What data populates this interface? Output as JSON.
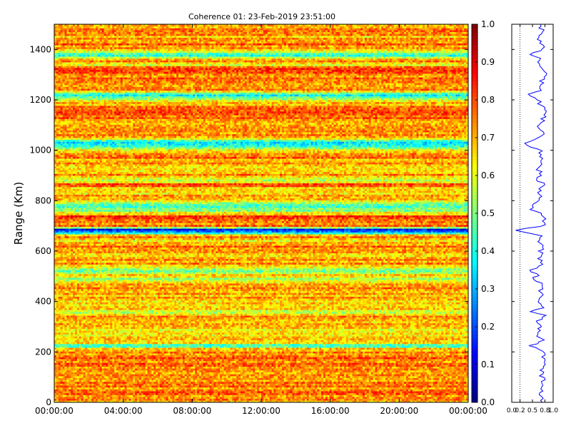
{
  "chart_data": [
    {
      "type": "heatmap",
      "title": "Coherence 01: 23-Feb-2019 23:51:00",
      "xlabel": "",
      "ylabel": "Range (Km)",
      "x_ticks": [
        "00:00:00",
        "04:00:00",
        "08:00:00",
        "12:00:00",
        "16:00:00",
        "20:00:00",
        "00:00:00"
      ],
      "y_ticks": [
        0,
        200,
        400,
        600,
        800,
        1000,
        1200,
        1400
      ],
      "xlim": [
        "00:00:00",
        "24:00:00"
      ],
      "ylim": [
        0,
        1500
      ],
      "colorbar": {
        "ticks": [
          0.0,
          0.1,
          0.2,
          0.3,
          0.4,
          0.5,
          0.6,
          0.7,
          0.8,
          0.9,
          1.0
        ],
        "range": [
          0.0,
          1.0
        ],
        "colormap": "jet"
      },
      "range_step_km": 7.5,
      "time_columns": 200,
      "range_profile": {
        "range_km": [
          0,
          100,
          170,
          200,
          215,
          225,
          235,
          250,
          260,
          275,
          290,
          300,
          320,
          345,
          360,
          375,
          400,
          425,
          450,
          475,
          490,
          505,
          520,
          535,
          550,
          570,
          600,
          620,
          640,
          660,
          685,
          700,
          720,
          740,
          760,
          775,
          790,
          810,
          840,
          870,
          880,
          900,
          930,
          950,
          985,
          1000,
          1030,
          1050,
          1080,
          1100,
          1135,
          1150,
          1180,
          1200,
          1220,
          1240,
          1260,
          1290,
          1320,
          1340,
          1360,
          1380,
          1400,
          1420,
          1440,
          1470,
          1500
        ],
        "coherence": [
          0.72,
          0.74,
          0.75,
          0.74,
          0.66,
          0.42,
          0.62,
          0.76,
          0.6,
          0.72,
          0.58,
          0.74,
          0.62,
          0.76,
          0.5,
          0.72,
          0.64,
          0.7,
          0.72,
          0.68,
          0.46,
          0.75,
          0.44,
          0.62,
          0.78,
          0.66,
          0.7,
          0.79,
          0.66,
          0.72,
          0.05,
          0.78,
          0.74,
          0.8,
          0.5,
          0.46,
          0.52,
          0.72,
          0.66,
          0.76,
          0.54,
          0.72,
          0.62,
          0.72,
          0.74,
          0.66,
          0.3,
          0.7,
          0.74,
          0.66,
          0.8,
          0.78,
          0.72,
          0.62,
          0.35,
          0.74,
          0.7,
          0.74,
          0.82,
          0.62,
          0.76,
          0.38,
          0.72,
          0.76,
          0.68,
          0.72,
          0.7
        ]
      }
    },
    {
      "type": "line",
      "title": "",
      "xlabel": "",
      "ylabel": "",
      "x_ticks": [
        "0.0",
        "0.2",
        "0.5",
        "0.8",
        "1.0"
      ],
      "xlim": [
        0.0,
        1.0
      ],
      "ylim": [
        0,
        1500
      ],
      "reference_line_x": 0.2,
      "series": [
        {
          "color": "#0000ff",
          "x": [
            0.72,
            0.74,
            0.75,
            0.74,
            0.66,
            0.42,
            0.62,
            0.76,
            0.6,
            0.72,
            0.58,
            0.74,
            0.62,
            0.76,
            0.5,
            0.72,
            0.64,
            0.7,
            0.72,
            0.68,
            0.46,
            0.75,
            0.44,
            0.62,
            0.78,
            0.66,
            0.7,
            0.79,
            0.66,
            0.72,
            0.05,
            0.78,
            0.74,
            0.8,
            0.5,
            0.46,
            0.52,
            0.72,
            0.66,
            0.76,
            0.54,
            0.72,
            0.62,
            0.72,
            0.74,
            0.66,
            0.3,
            0.7,
            0.74,
            0.66,
            0.8,
            0.78,
            0.72,
            0.62,
            0.35,
            0.74,
            0.7,
            0.74,
            0.82,
            0.62,
            0.76,
            0.38,
            0.72,
            0.76,
            0.68,
            0.72,
            0.7
          ],
          "y": [
            0,
            100,
            170,
            200,
            215,
            225,
            235,
            250,
            260,
            275,
            290,
            300,
            320,
            345,
            360,
            375,
            400,
            425,
            450,
            475,
            490,
            505,
            520,
            535,
            550,
            570,
            600,
            620,
            640,
            660,
            685,
            700,
            720,
            740,
            760,
            775,
            790,
            810,
            840,
            870,
            880,
            900,
            930,
            950,
            985,
            1000,
            1030,
            1050,
            1080,
            1100,
            1135,
            1150,
            1180,
            1200,
            1220,
            1240,
            1260,
            1290,
            1320,
            1340,
            1360,
            1380,
            1400,
            1420,
            1440,
            1470,
            1500
          ]
        }
      ]
    }
  ]
}
